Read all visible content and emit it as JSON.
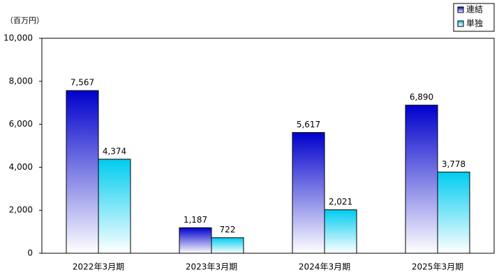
{
  "chart_data": {
    "type": "bar",
    "unit_label": "（百万円）",
    "categories": [
      "2022年3月期",
      "2023年3月期",
      "2024年3月期",
      "2025年3月期"
    ],
    "series": [
      {
        "name": "連結",
        "color": "#0000cc",
        "values": [
          7567,
          1187,
          5617,
          6890
        ],
        "value_labels": [
          "7,567",
          "1,187",
          "5,617",
          "6,890"
        ]
      },
      {
        "name": "単独",
        "color": "#00ccf0",
        "values": [
          4374,
          722,
          2021,
          3778
        ],
        "value_labels": [
          "4,374",
          "722",
          "2,021",
          "3,778"
        ]
      }
    ],
    "ylim": [
      0,
      10000
    ],
    "yticks": [
      0,
      {
        "value": 2000,
        "label": "2,000"
      },
      {
        "value": 4000,
        "label": "4,000"
      },
      {
        "value": 6000,
        "label": "6,000"
      },
      {
        "value": 8000,
        "label": "8,000"
      },
      {
        "value": 10000,
        "label": "10,000"
      }
    ],
    "grid": false,
    "legend": "top-right"
  }
}
